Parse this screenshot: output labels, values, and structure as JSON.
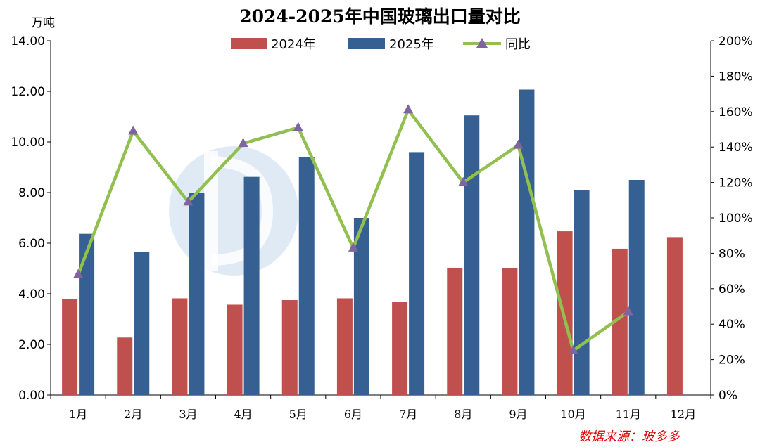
{
  "chart_data": {
    "type": "bar",
    "title": "2024-2025年中国玻璃出口量对比",
    "ylabel": "万吨",
    "ylim": [
      0,
      14
    ],
    "y_ticks": [
      "0.00",
      "2.00",
      "4.00",
      "6.00",
      "8.00",
      "10.00",
      "12.00",
      "14.00"
    ],
    "y2lim": [
      0,
      200
    ],
    "y2_ticks": [
      "0%",
      "20%",
      "40%",
      "60%",
      "80%",
      "100%",
      "120%",
      "140%",
      "160%",
      "180%",
      "200%"
    ],
    "categories": [
      "1月",
      "2月",
      "3月",
      "4月",
      "5月",
      "6月",
      "7月",
      "8月",
      "9月",
      "10月",
      "11月",
      "12月"
    ],
    "series": [
      {
        "name": "2024年",
        "type": "bar",
        "color": "#c0504d",
        "axis": "left",
        "values": [
          3.78,
          2.27,
          3.82,
          3.57,
          3.75,
          3.82,
          3.68,
          5.03,
          5.02,
          6.47,
          5.78,
          6.24
        ]
      },
      {
        "name": "2025年",
        "type": "bar",
        "color": "#376092",
        "axis": "left",
        "values": [
          6.37,
          5.65,
          7.98,
          8.62,
          9.4,
          7.0,
          9.6,
          11.05,
          12.07,
          8.1,
          8.5,
          null
        ]
      },
      {
        "name": "同比",
        "type": "line",
        "color": "#92c050",
        "marker_color": "#8064a2",
        "axis": "right",
        "values": [
          68,
          149,
          109,
          142,
          151,
          83,
          161,
          120,
          141,
          25,
          47,
          null
        ]
      }
    ],
    "legend_position": "top-center",
    "source": "数据来源：玻多多"
  }
}
